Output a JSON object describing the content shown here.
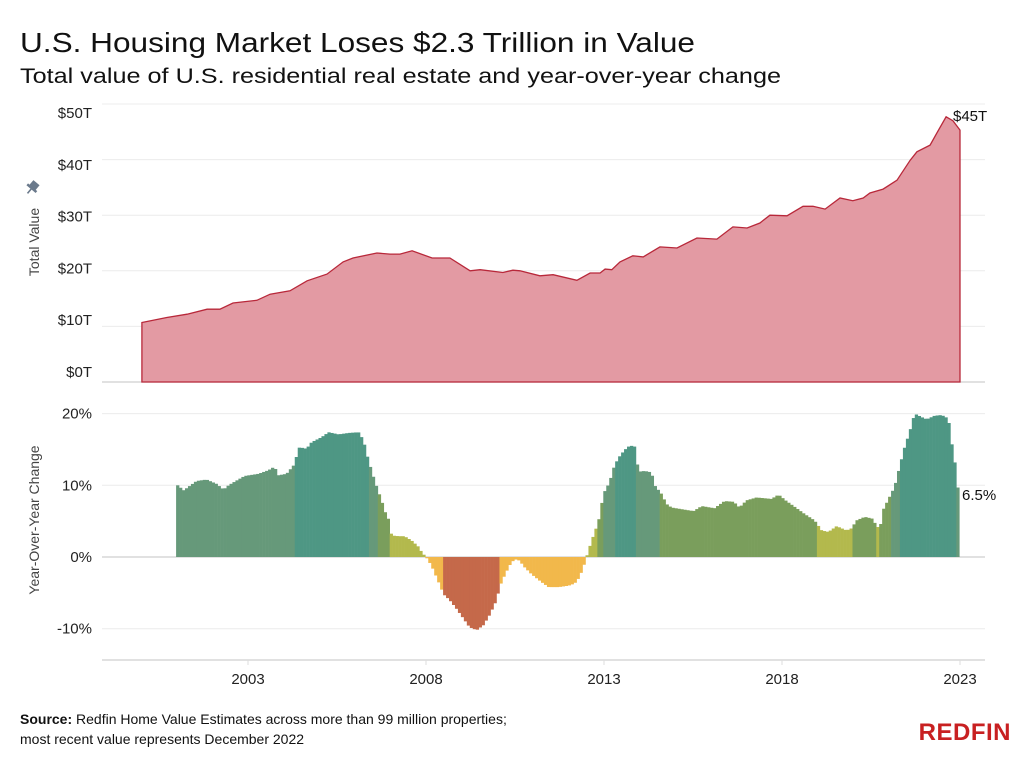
{
  "title": "U.S. Housing Market Loses $2.3 Trillion in Value",
  "subtitle": "Total value of U.S. residential real estate and year-over-year change",
  "source_label": "Source:",
  "source_text_1": "Redfin Home Value Estimates across more than 99 million properties;",
  "source_text_2": "most recent value represents December 2022",
  "logo_text": "REDFIN",
  "colors": {
    "area_fill": "#e39aa3",
    "area_line": "#b8283a",
    "yoy_high": "#4e9784",
    "yoy_mid": "#66997a",
    "yoy_low": "#7a9e5c",
    "yoy_flat": "#b3b94d",
    "yoy_neg": "#f2b84b",
    "yoy_deep_neg": "#c5694a",
    "logo": "#c82021"
  },
  "x_ticks": [
    "2003",
    "2008",
    "2013",
    "2018",
    "2023"
  ],
  "chart_data": [
    {
      "type": "area",
      "ylabel": "Total Value",
      "y_ticks": [
        "$0T",
        "$10T",
        "$20T",
        "$30T",
        "$40T",
        "$50T"
      ],
      "ylim": [
        0,
        50
      ],
      "xlim": [
        1999.3,
        2024.0
      ],
      "grid": true,
      "end_label": "$45T",
      "x": [
        2000.02,
        2000.72,
        2001.29,
        2001.85,
        2002.21,
        2002.58,
        2003.25,
        2003.62,
        2004.18,
        2004.66,
        2005.22,
        2005.67,
        2005.95,
        2006.62,
        2006.99,
        2007.27,
        2007.61,
        2008.17,
        2008.67,
        2009.24,
        2009.52,
        2010.16,
        2010.44,
        2010.64,
        2011.2,
        2011.57,
        2012.24,
        2012.61,
        2012.89,
        2013.03,
        2013.22,
        2013.45,
        2013.81,
        2014.1,
        2014.57,
        2015.05,
        2015.61,
        2016.17,
        2016.62,
        2017.02,
        2017.38,
        2017.66,
        2018.14,
        2018.59,
        2018.87,
        2019.21,
        2019.63,
        2019.99,
        2020.28,
        2020.47,
        2020.84,
        2021.23,
        2021.6,
        2021.79,
        2022.16,
        2022.35,
        2022.61,
        2022.8,
        2023.0
      ],
      "values": [
        10.7,
        11.6,
        12.2,
        13.1,
        13.1,
        14.2,
        14.7,
        15.8,
        16.4,
        18.2,
        19.4,
        21.6,
        22.3,
        23.2,
        23.0,
        23.0,
        23.6,
        22.3,
        22.3,
        20.0,
        20.2,
        19.7,
        20.1,
        20.0,
        19.1,
        19.3,
        18.3,
        19.6,
        19.6,
        20.3,
        20.2,
        21.6,
        22.7,
        22.5,
        24.3,
        24.1,
        25.9,
        25.7,
        27.9,
        27.7,
        28.6,
        30.0,
        29.9,
        31.6,
        31.6,
        31.1,
        33.1,
        32.6,
        33.1,
        34.0,
        34.7,
        36.3,
        39.9,
        41.4,
        42.6,
        44.8,
        47.7,
        47.0,
        45.3
      ]
    },
    {
      "type": "bar",
      "ylabel": "Year-Over-Year Change",
      "y_ticks": [
        "-10%",
        "0%",
        "10%",
        "20%"
      ],
      "ylim": [
        -14.5,
        22
      ],
      "xlim": [
        1999.3,
        2024.0
      ],
      "grid": true,
      "end_label": "6.5%",
      "x": [
        2000.98,
        2001.15,
        2001.51,
        2001.79,
        2002.07,
        2002.27,
        2002.41,
        2002.58,
        2002.86,
        2003.25,
        2003.53,
        2003.7,
        2003.81,
        2004.04,
        2004.24,
        2004.4,
        2004.6,
        2004.74,
        2005.02,
        2005.22,
        2005.5,
        2005.78,
        2006.06,
        2006.2,
        2006.29,
        2006.37,
        2006.51,
        2006.62,
        2006.71,
        2006.79,
        2006.9,
        2006.99,
        2007.19,
        2007.35,
        2007.55,
        2007.75,
        2007.83,
        2007.97,
        2008.11,
        2008.31,
        2008.45,
        2008.62,
        2008.81,
        2009.01,
        2009.18,
        2009.38,
        2009.57,
        2009.74,
        2009.94,
        2010.02,
        2010.16,
        2010.3,
        2010.44,
        2010.58,
        2010.72,
        2010.92,
        2011.2,
        2011.4,
        2011.68,
        2011.96,
        2012.13,
        2012.27,
        2012.41,
        2012.52,
        2012.66,
        2012.8,
        2012.89,
        2012.97,
        2013.11,
        2013.25,
        2013.39,
        2013.53,
        2013.67,
        2013.81,
        2013.93,
        2014.1,
        2014.29,
        2014.38,
        2014.57,
        2014.71,
        2014.85,
        2015.22,
        2015.47,
        2015.7,
        2016.06,
        2016.34,
        2016.6,
        2016.76,
        2016.96,
        2017.24,
        2017.66,
        2017.86,
        2018.08,
        2018.31,
        2018.59,
        2018.87,
        2019.07,
        2019.26,
        2019.49,
        2019.77,
        2019.91,
        2020.05,
        2020.28,
        2020.53,
        2020.61,
        2020.75,
        2020.81,
        2020.95,
        2021.12,
        2021.26,
        2021.4,
        2021.54,
        2021.68,
        2021.88,
        2022.02,
        2022.24,
        2022.44,
        2022.63,
        2022.72,
        2022.8,
        2022.86,
        2022.92,
        2022.96
      ],
      "values": [
        10.0,
        9.3,
        10.6,
        10.8,
        10.2,
        9.4,
        10.0,
        10.5,
        11.3,
        11.6,
        12.1,
        12.6,
        11.4,
        11.6,
        12.8,
        15.3,
        15.1,
        16.0,
        16.7,
        17.4,
        17.1,
        17.3,
        17.4,
        16.3,
        14.4,
        13.0,
        10.7,
        9.1,
        7.9,
        6.5,
        5.3,
        3.0,
        2.9,
        2.9,
        2.3,
        1.4,
        0.7,
        -0.1,
        -1.2,
        -3.5,
        -5.2,
        -6.0,
        -7.2,
        -8.6,
        -9.8,
        -10.2,
        -9.5,
        -8.1,
        -6.0,
        -4.2,
        -2.6,
        -1.2,
        -0.3,
        -0.5,
        -1.4,
        -2.4,
        -3.5,
        -4.2,
        -4.2,
        -4.0,
        -3.7,
        -2.8,
        -0.9,
        0.9,
        3.0,
        4.9,
        7.4,
        9.1,
        10.4,
        12.8,
        14.0,
        14.9,
        15.5,
        15.5,
        11.9,
        12.0,
        11.8,
        10.0,
        8.8,
        7.4,
        6.9,
        6.6,
        6.4,
        7.1,
        6.8,
        7.8,
        7.7,
        6.9,
        7.9,
        8.3,
        8.1,
        8.7,
        7.8,
        7.0,
        6.0,
        5.1,
        3.7,
        3.5,
        4.3,
        3.7,
        4.0,
        5.1,
        5.6,
        5.3,
        4.0,
        4.7,
        6.7,
        8.1,
        9.8,
        12.6,
        15.3,
        17.4,
        20.0,
        19.5,
        19.2,
        19.7,
        19.8,
        19.3,
        16.0,
        13.7,
        11.4,
        8.6,
        6.5
      ]
    }
  ]
}
